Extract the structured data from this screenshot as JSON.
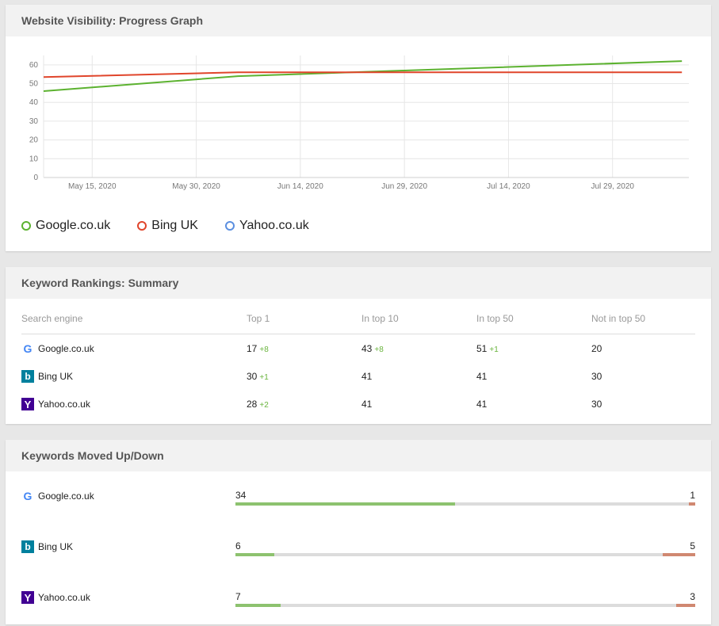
{
  "visibility": {
    "title": "Website Visibility: Progress Graph",
    "legend": [
      {
        "label": "Google.co.uk",
        "color": "#5cb230"
      },
      {
        "label": "Bing UK",
        "color": "#e0452b"
      },
      {
        "label": "Yahoo.co.uk",
        "color": "#5b8fe0"
      }
    ]
  },
  "chart_data": {
    "type": "line",
    "title": "Website Visibility: Progress Graph",
    "xlabel": "",
    "ylabel": "",
    "ylim": [
      0,
      65
    ],
    "yticks": [
      0,
      10,
      20,
      30,
      40,
      50,
      60
    ],
    "xlim": [
      "2020-05-08",
      "2020-08-09"
    ],
    "xticks": [
      "May 15, 2020",
      "May 30, 2020",
      "Jun 14, 2020",
      "Jun 29, 2020",
      "Jul 14, 2020",
      "Jul 29, 2020"
    ],
    "xtick_dates": [
      "2020-05-15",
      "2020-05-30",
      "2020-06-14",
      "2020-06-29",
      "2020-07-14",
      "2020-07-29"
    ],
    "grid": true,
    "legend_position": "bottom-left",
    "series": [
      {
        "name": "Google.co.uk",
        "color": "#5cb230",
        "points": [
          [
            "2020-05-08",
            46
          ],
          [
            "2020-06-05",
            54
          ],
          [
            "2020-06-29",
            57
          ],
          [
            "2020-08-08",
            62
          ]
        ]
      },
      {
        "name": "Bing UK",
        "color": "#e0452b",
        "points": [
          [
            "2020-05-08",
            53.5
          ],
          [
            "2020-06-05",
            56
          ],
          [
            "2020-06-29",
            56
          ],
          [
            "2020-08-08",
            56
          ]
        ]
      },
      {
        "name": "Yahoo.co.uk",
        "color": "#5b8fe0",
        "points": []
      }
    ]
  },
  "rankings": {
    "title": "Keyword Rankings: Summary",
    "headers": [
      "Search engine",
      "Top 1",
      "In top 10",
      "In top 50",
      "Not in top 50"
    ],
    "rows": [
      {
        "engine": "Google.co.uk",
        "icon": "google-icon",
        "top1": "17",
        "top1_delta": "+8",
        "top10": "43",
        "top10_delta": "+8",
        "top50": "51",
        "top50_delta": "+1",
        "not50": "20"
      },
      {
        "engine": "Bing UK",
        "icon": "bing-icon",
        "top1": "30",
        "top1_delta": "+1",
        "top10": "41",
        "top10_delta": "",
        "top50": "41",
        "top50_delta": "",
        "not50": "30"
      },
      {
        "engine": "Yahoo.co.uk",
        "icon": "yahoo-icon",
        "top1": "28",
        "top1_delta": "+2",
        "top10": "41",
        "top10_delta": "",
        "top50": "41",
        "top50_delta": "",
        "not50": "30"
      }
    ]
  },
  "moved": {
    "title": "Keywords Moved Up/Down",
    "colors": {
      "up": "#8dc26f",
      "down": "#d08871"
    },
    "rows": [
      {
        "engine": "Google.co.uk",
        "icon": "google-icon",
        "up": "34",
        "down": "1",
        "up_fraction": 0.478,
        "down_fraction": 0.014
      },
      {
        "engine": "Bing UK",
        "icon": "bing-icon",
        "up": "6",
        "down": "5",
        "up_fraction": 0.084,
        "down_fraction": 0.07
      },
      {
        "engine": "Yahoo.co.uk",
        "icon": "yahoo-icon",
        "up": "7",
        "down": "3",
        "up_fraction": 0.098,
        "down_fraction": 0.042
      }
    ]
  }
}
